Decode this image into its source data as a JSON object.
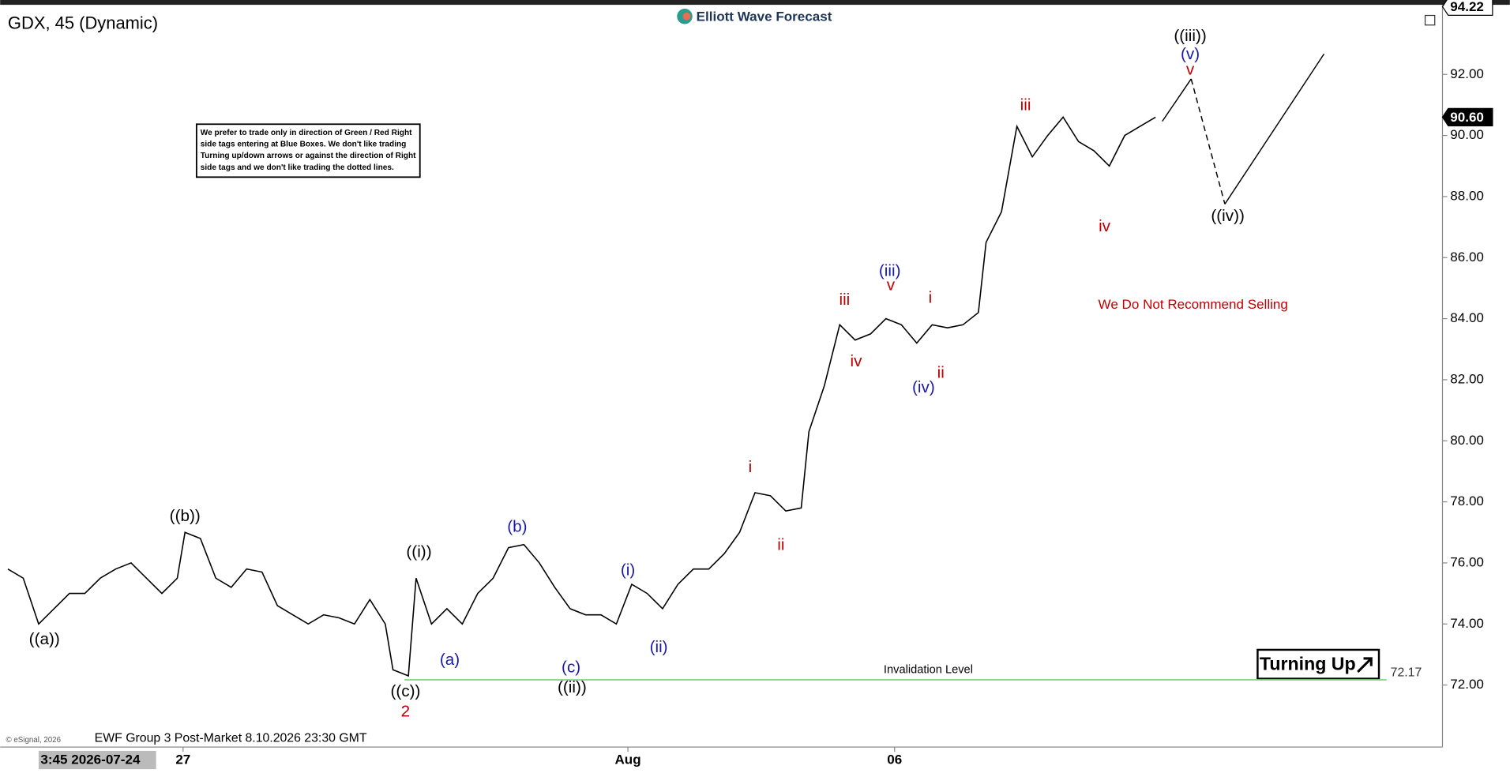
{
  "chart_data": {
    "type": "line",
    "title": "GDX, 45 (Dynamic)",
    "brand": "Elliott Wave Forecast",
    "notice": [
      "We prefer to trade only in direction of Green / Red Right",
      "side tags entering at Blue Boxes. We don't like trading",
      "Turning up/down arrows or against the direction of Right",
      "side tags and we don't like trading the dotted lines."
    ],
    "footer": "EWF Group 3 Post-Market 8.10.2026 23:30 GMT",
    "copyright": "© eSignal, 2026",
    "cursor_label": "3:45 2026-07-24",
    "button": "Turning Up",
    "color": "#000000",
    "x": [
      3,
      19,
      35,
      51,
      67,
      83,
      99,
      115,
      131,
      147,
      163,
      179,
      187,
      203,
      219,
      235,
      251,
      267,
      283,
      299,
      315,
      331,
      347,
      363,
      379,
      395,
      403,
      419,
      427,
      443,
      459,
      475,
      491,
      507,
      523,
      539,
      555,
      571,
      587,
      603,
      619,
      635,
      651,
      667,
      683,
      699,
      715,
      731,
      747,
      763,
      779,
      795,
      811,
      827,
      835,
      851,
      867,
      883,
      899,
      915,
      931,
      947,
      963,
      979,
      995,
      1011,
      1019,
      1035,
      1051,
      1067,
      1083,
      1099,
      1115,
      1131,
      1147,
      1163,
      1179,
      1195
    ],
    "values": [
      75.8,
      75.5,
      74.0,
      74.5,
      75.0,
      75.0,
      75.5,
      75.8,
      76.0,
      75.5,
      75.0,
      75.5,
      77.0,
      76.8,
      75.5,
      75.2,
      75.8,
      75.7,
      74.6,
      74.3,
      74.0,
      74.3,
      74.2,
      74.0,
      74.8,
      74.0,
      72.5,
      72.3,
      75.5,
      74.0,
      74.5,
      74.0,
      75.0,
      75.5,
      76.5,
      76.6,
      76.0,
      75.2,
      74.5,
      74.3,
      74.3,
      74.0,
      75.3,
      75.0,
      74.5,
      75.3,
      75.8,
      75.8,
      76.3,
      77.0,
      78.3,
      78.2,
      77.7,
      77.8,
      80.3,
      81.8,
      83.8,
      83.3,
      83.5,
      84.0,
      83.8,
      83.2,
      83.8,
      83.7,
      83.8,
      84.2,
      86.5,
      87.5,
      90.3,
      89.3,
      90.0,
      90.6,
      89.8,
      89.5,
      89.0,
      90.0,
      90.3,
      90.6
    ],
    "xlim": [
      0,
      1493
    ],
    "xticks": [
      {
        "value": 185,
        "label": "27"
      },
      {
        "value": 647,
        "label": "Aug"
      },
      {
        "value": 924,
        "label": "06"
      }
    ],
    "ylim": [
      69.97,
      94.28
    ],
    "yticks": [
      {
        "value": 72,
        "label": "72.00"
      },
      {
        "value": 74,
        "label": "74.00"
      },
      {
        "value": 76,
        "label": "76.00"
      },
      {
        "value": 78,
        "label": "78.00"
      },
      {
        "value": 80,
        "label": "80.00"
      },
      {
        "value": 82,
        "label": "82.00"
      },
      {
        "value": 84,
        "label": "84.00"
      },
      {
        "value": 86,
        "label": "86.00"
      },
      {
        "value": 88,
        "label": "88.00"
      },
      {
        "value": 90,
        "label": "90.00"
      },
      {
        "value": 92,
        "label": "92.00"
      }
    ],
    "price_tags": [
      {
        "value": 94.22
      },
      {
        "value": 90.6,
        "label": "90.60"
      }
    ],
    "invalidation": {
      "label": "Invalidation Level",
      "value": 72.17,
      "color": "#7ed47e"
    },
    "annotations": [
      {
        "text": "((a))",
        "color": "#000000"
      },
      {
        "text": "((b))",
        "color": "#000000"
      },
      {
        "text": "((c))",
        "color": "#000000"
      },
      {
        "text": "2",
        "color": "#c00000"
      },
      {
        "text": "((i))",
        "color": "#000000"
      },
      {
        "text": "(a)",
        "color": "#1a1aa8"
      },
      {
        "text": "(b)",
        "color": "#1a1aa8"
      },
      {
        "text": "(c)",
        "color": "#1a1aa8"
      },
      {
        "text": "((ii))",
        "color": "#000000"
      },
      {
        "text": "(i)",
        "color": "#1a1aa8"
      },
      {
        "text": "(ii)",
        "color": "#1a1aa8"
      },
      {
        "text": "i",
        "color": "#c00000"
      },
      {
        "text": "ii",
        "color": "#c00000"
      },
      {
        "text": "iii",
        "color": "#c00000"
      },
      {
        "text": "iv",
        "color": "#c00000"
      },
      {
        "text": "(iii)",
        "color": "#1a1aa8"
      },
      {
        "text": "v",
        "color": "#c00000"
      },
      {
        "text": "i",
        "color": "#c00000"
      },
      {
        "text": "(iv)",
        "color": "#1a1aa8"
      },
      {
        "text": "ii",
        "color": "#c00000"
      },
      {
        "text": "iii",
        "color": "#c00000"
      },
      {
        "text": "iv",
        "color": "#c00000"
      },
      {
        "text": "((iii))",
        "color": "#000000"
      },
      {
        "text": "(v)",
        "color": "#1a1aa8"
      },
      {
        "text": "v",
        "color": "#c00000"
      },
      {
        "text": "((iv))",
        "color": "#000000"
      },
      {
        "text": "We Do Not Recommend Selling",
        "color": "#c00000"
      }
    ]
  }
}
